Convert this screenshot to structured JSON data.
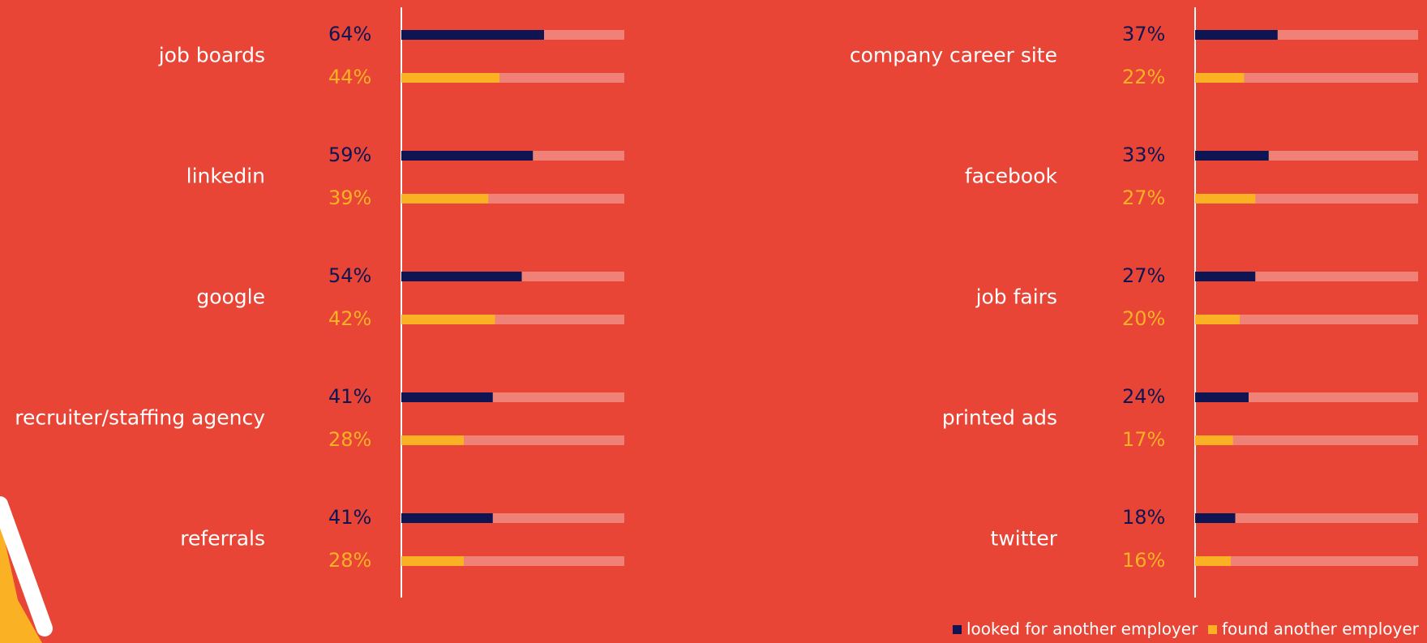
{
  "chart_data": {
    "type": "bar",
    "categories": [
      "job boards",
      "linkedin",
      "google",
      "recruiter/staffing agency",
      "referrals",
      "company career site",
      "facebook",
      "job fairs",
      "printed ads",
      "twitter"
    ],
    "series": [
      {
        "name": "looked for another employer",
        "color": "#0e1552",
        "values": [
          64,
          59,
          54,
          41,
          41,
          37,
          33,
          27,
          24,
          18
        ],
        "value_labels": [
          "64%",
          "59%",
          "54%",
          "41%",
          "41%",
          "37%",
          "33%",
          "27%",
          "24%",
          "18%"
        ]
      },
      {
        "name": "found another employer",
        "color": "#fbb124",
        "values": [
          44,
          39,
          42,
          28,
          28,
          22,
          27,
          20,
          17,
          16
        ],
        "value_labels": [
          "44%",
          "39%",
          "42%",
          "28%",
          "28%",
          "22%",
          "27%",
          "20%",
          "17%",
          "16%"
        ]
      }
    ],
    "xlim": [
      0,
      100
    ],
    "track_color": "#f08177",
    "background": "#e84537"
  }
}
